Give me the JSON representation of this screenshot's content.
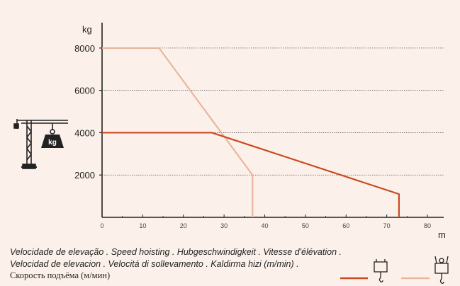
{
  "colors": {
    "background": "#fcf1ea",
    "series_dark": "#c94a22",
    "series_light": "#ebb59e",
    "gridline": "#555555",
    "axis": "#222222"
  },
  "icons": {
    "crane": "tower-crane-icon",
    "weight": "kg-weight-icon",
    "hoist_single": "single-fall-hook-icon",
    "hoist_double": "double-fall-hook-icon"
  },
  "chart_data": {
    "type": "line",
    "ylabel": "kg",
    "xlabel": "m",
    "xlim": [
      0,
      84
    ],
    "ylim": [
      0,
      9200
    ],
    "x_ticks": [
      0,
      10,
      20,
      30,
      40,
      50,
      60,
      70,
      80
    ],
    "y_ticks": [
      2000,
      4000,
      6000,
      8000
    ],
    "y_tick_labels": [
      "2000",
      "4000",
      "6000",
      "8000"
    ],
    "x_tick_labels": [
      "0",
      "10",
      "20",
      "30",
      "40",
      "50",
      "60",
      "70",
      "80"
    ],
    "grid": "horizontal dotted at y ticks",
    "series": [
      {
        "color": "#ebb59e",
        "x": [
          0,
          14,
          37,
          37
        ],
        "y": [
          8000,
          8000,
          2000,
          0
        ]
      },
      {
        "color": "#c94a22",
        "x": [
          0,
          27,
          73,
          73
        ],
        "y": [
          4000,
          4000,
          1100,
          0
        ]
      }
    ]
  },
  "caption": {
    "line1": "Velocidade de elevação . Speed hoisting . Hubgeschwindigkeit . Vitesse d'élévation .",
    "line2": "Velocidad de elevacion . Velocitá di sollevamento . Kaldirma hizi (m/min) .",
    "line3": "Скорость подъёма (м/мин)"
  },
  "weight_label": "kg"
}
